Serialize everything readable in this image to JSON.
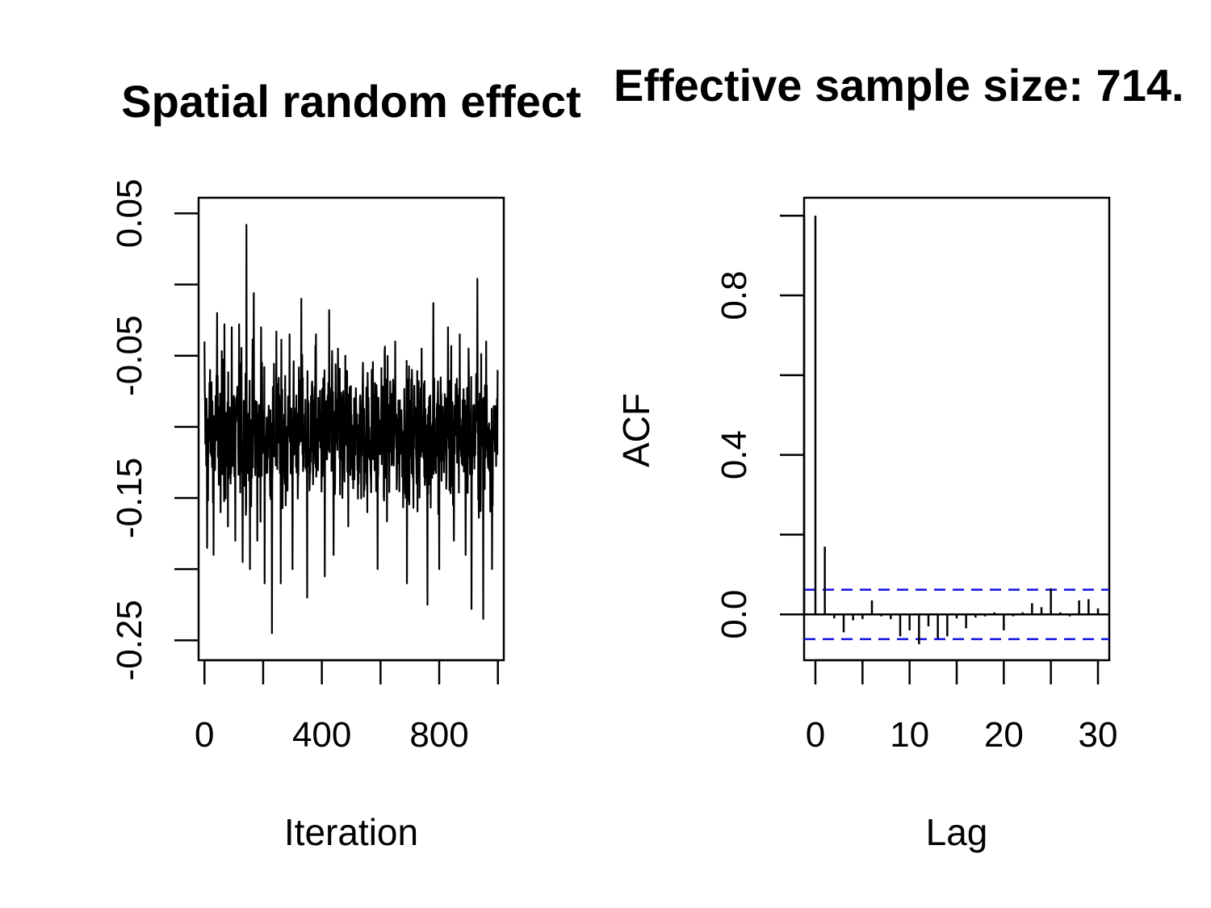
{
  "chart_data": [
    {
      "type": "line",
      "title": "Spatial random effect",
      "xlabel": "Iteration",
      "ylabel": "",
      "xlim": [
        -20,
        1020
      ],
      "ylim": [
        -0.264,
        0.061
      ],
      "xticks": [
        0,
        200,
        400,
        600,
        800,
        1000
      ],
      "xtick_labels": [
        "0",
        "400",
        "800"
      ],
      "xtick_label_values": [
        0,
        400,
        800
      ],
      "yticks": [
        -0.25,
        -0.2,
        -0.15,
        -0.1,
        -0.05,
        0.0,
        0.05
      ],
      "ytick_labels": [
        "-0.25",
        "-0.15",
        "-0.05",
        "0.05"
      ],
      "ytick_label_values": [
        -0.25,
        -0.15,
        -0.05,
        0.05
      ],
      "grid": false,
      "series": [
        {
          "n": 1000,
          "mean": -0.105,
          "x": [
            0,
            9,
            19,
            31,
            43,
            55,
            68,
            80,
            93,
            105,
            118,
            130,
            143,
            155,
            168,
            180,
            193,
            205,
            230,
            245,
            260,
            290,
            300,
            330,
            350,
            380,
            410,
            425,
            440,
            455,
            470,
            480,
            490,
            510,
            525,
            540,
            555,
            570,
            590,
            650,
            690,
            740,
            760,
            780,
            800,
            830,
            850,
            870,
            890,
            900,
            910,
            930,
            950,
            960,
            980,
            999
          ],
          "y": [
            -0.04,
            -0.185,
            -0.06,
            -0.19,
            -0.02,
            -0.16,
            -0.028,
            -0.17,
            -0.03,
            -0.18,
            -0.028,
            -0.195,
            0.042,
            -0.2,
            -0.006,
            -0.18,
            -0.03,
            -0.21,
            -0.245,
            -0.033,
            -0.21,
            -0.035,
            -0.2,
            -0.01,
            -0.22,
            -0.035,
            -0.205,
            -0.018,
            -0.19,
            -0.045,
            -0.15,
            -0.05,
            -0.17,
            -0.08,
            -0.14,
            -0.055,
            -0.16,
            -0.06,
            -0.2,
            -0.04,
            -0.21,
            -0.045,
            -0.225,
            -0.013,
            -0.2,
            -0.03,
            -0.18,
            -0.035,
            -0.19,
            -0.045,
            -0.228,
            0.004,
            -0.235,
            -0.04,
            -0.2,
            -0.06
          ]
        }
      ]
    },
    {
      "type": "bar",
      "title": "Effective sample size: 714.",
      "xlabel": "Lag",
      "ylabel": "ACF",
      "xlim": [
        -1.2,
        31.2
      ],
      "ylim": [
        -0.115,
        1.045
      ],
      "xticks": [
        0,
        5,
        10,
        15,
        20,
        25,
        30
      ],
      "xtick_labels": [
        "0",
        "10",
        "20",
        "30"
      ],
      "xtick_label_values": [
        0,
        10,
        20,
        30
      ],
      "yticks": [
        0.0,
        0.2,
        0.4,
        0.6,
        0.8,
        1.0
      ],
      "ytick_labels": [
        "0.0",
        "0.4",
        "0.8"
      ],
      "ytick_label_values": [
        0.0,
        0.4,
        0.8
      ],
      "grid": false,
      "confidence_band": 0.062,
      "lags": [
        0,
        1,
        2,
        3,
        4,
        5,
        6,
        7,
        8,
        9,
        10,
        11,
        12,
        13,
        14,
        15,
        16,
        17,
        18,
        19,
        20,
        21,
        22,
        23,
        24,
        25,
        26,
        27,
        28,
        29,
        30
      ],
      "values": [
        1.0,
        0.17,
        -0.01,
        -0.045,
        -0.015,
        -0.012,
        0.035,
        -0.005,
        -0.012,
        -0.055,
        -0.04,
        -0.075,
        -0.03,
        -0.06,
        -0.055,
        -0.01,
        -0.035,
        -0.008,
        -0.005,
        0.005,
        -0.04,
        -0.005,
        0.005,
        0.028,
        0.018,
        0.065,
        0.005,
        -0.005,
        0.035,
        0.038,
        0.015
      ]
    }
  ]
}
